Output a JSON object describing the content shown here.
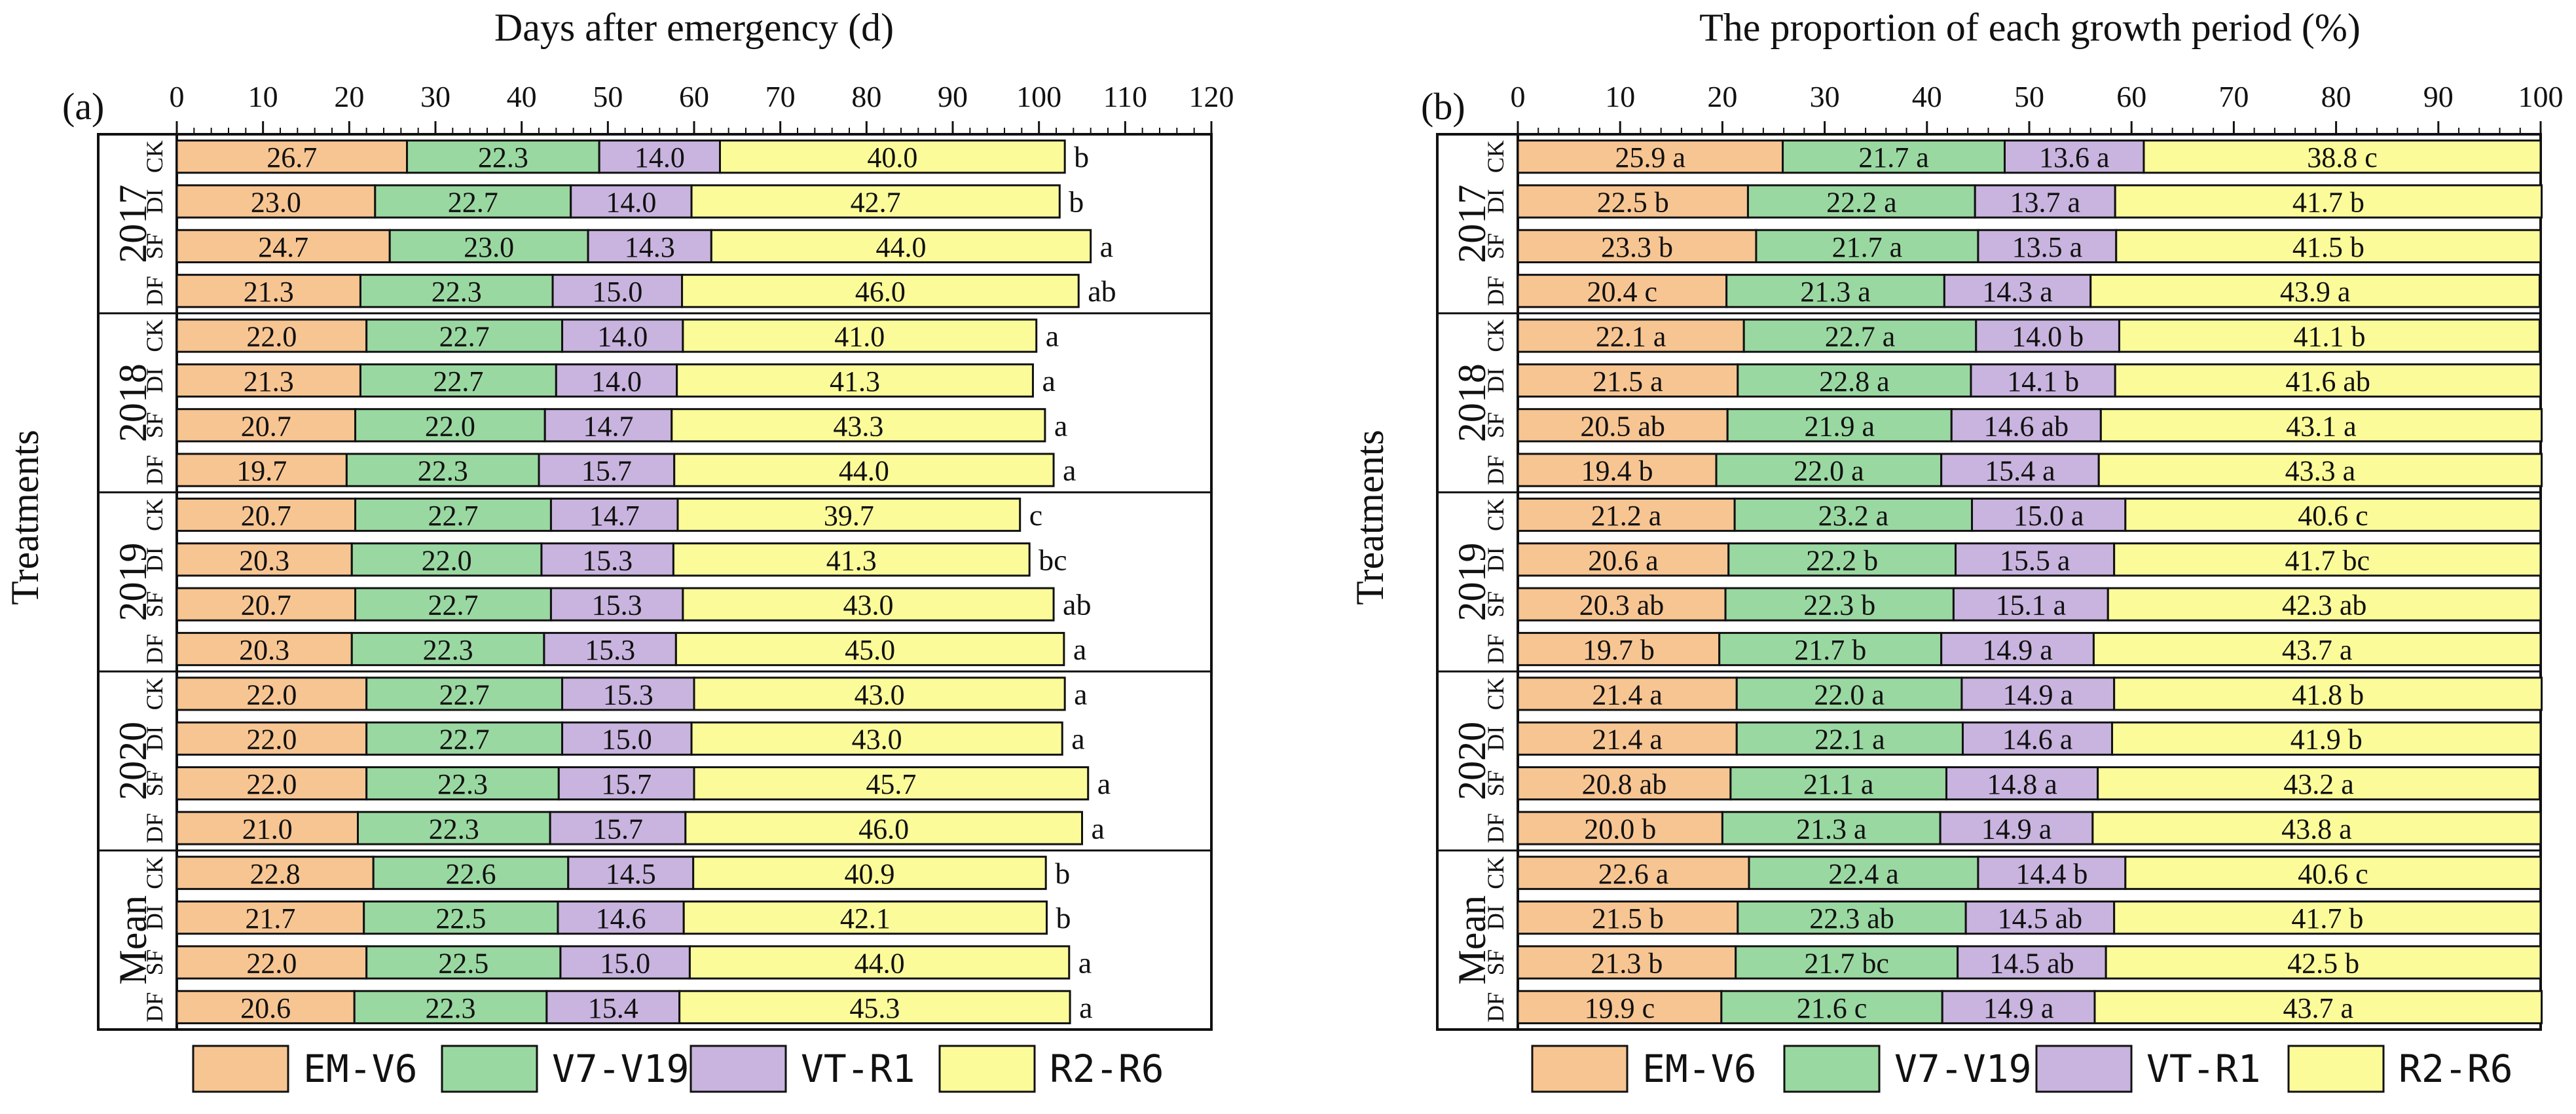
{
  "colors": {
    "EM-V6": "#f7c592",
    "V7-V19": "#9ad8a1",
    "VT-R1": "#c8b4de",
    "R2-R6": "#fbfb9a",
    "stroke": "#111111"
  },
  "y_axis_label": "Treatments",
  "group_labels": [
    "2017",
    "2018",
    "2019",
    "2020",
    "Mean"
  ],
  "treatments": [
    "CK",
    "DI",
    "SF",
    "DF"
  ],
  "legend": [
    "EM-V6",
    "V7-V19",
    "VT-R1",
    "R2-R6"
  ],
  "chart_data": [
    {
      "type": "bar",
      "stacked": true,
      "orientation": "horizontal",
      "panel_label": "(a)",
      "title": "Days after emergency (d)",
      "xlim": [
        0,
        120
      ],
      "xticks": [
        0,
        10,
        20,
        30,
        40,
        50,
        60,
        70,
        80,
        90,
        100,
        110,
        120
      ],
      "groups": [
        {
          "name": "2017",
          "rows": [
            {
              "treatment": "CK",
              "values": [
                26.7,
                22.3,
                14.0,
                40.0
              ],
              "sig": "b"
            },
            {
              "treatment": "DI",
              "values": [
                23.0,
                22.7,
                14.0,
                42.7
              ],
              "sig": "b"
            },
            {
              "treatment": "SF",
              "values": [
                24.7,
                23.0,
                14.3,
                44.0
              ],
              "sig": "a"
            },
            {
              "treatment": "DF",
              "values": [
                21.3,
                22.3,
                15.0,
                46.0
              ],
              "sig": "ab"
            }
          ]
        },
        {
          "name": "2018",
          "rows": [
            {
              "treatment": "CK",
              "values": [
                22.0,
                22.7,
                14.0,
                41.0
              ],
              "sig": "a"
            },
            {
              "treatment": "DI",
              "values": [
                21.3,
                22.7,
                14.0,
                41.3
              ],
              "sig": "a"
            },
            {
              "treatment": "SF",
              "values": [
                20.7,
                22.0,
                14.7,
                43.3
              ],
              "sig": "a"
            },
            {
              "treatment": "DF",
              "values": [
                19.7,
                22.3,
                15.7,
                44.0
              ],
              "sig": "a"
            }
          ]
        },
        {
          "name": "2019",
          "rows": [
            {
              "treatment": "CK",
              "values": [
                20.7,
                22.7,
                14.7,
                39.7
              ],
              "sig": "c"
            },
            {
              "treatment": "DI",
              "values": [
                20.3,
                22.0,
                15.3,
                41.3
              ],
              "sig": "bc"
            },
            {
              "treatment": "SF",
              "values": [
                20.7,
                22.7,
                15.3,
                43.0
              ],
              "sig": "ab"
            },
            {
              "treatment": "DF",
              "values": [
                20.3,
                22.3,
                15.3,
                45.0
              ],
              "sig": "a"
            }
          ]
        },
        {
          "name": "2020",
          "rows": [
            {
              "treatment": "CK",
              "values": [
                22.0,
                22.7,
                15.3,
                43.0
              ],
              "sig": "a"
            },
            {
              "treatment": "DI",
              "values": [
                22.0,
                22.7,
                15.0,
                43.0
              ],
              "sig": "a"
            },
            {
              "treatment": "SF",
              "values": [
                22.0,
                22.3,
                15.7,
                45.7
              ],
              "sig": "a"
            },
            {
              "treatment": "DF",
              "values": [
                21.0,
                22.3,
                15.7,
                46.0
              ],
              "sig": "a"
            }
          ]
        },
        {
          "name": "Mean",
          "rows": [
            {
              "treatment": "CK",
              "values": [
                22.8,
                22.6,
                14.5,
                40.9
              ],
              "sig": "b"
            },
            {
              "treatment": "DI",
              "values": [
                21.7,
                22.5,
                14.6,
                42.1
              ],
              "sig": "b"
            },
            {
              "treatment": "SF",
              "values": [
                22.0,
                22.5,
                15.0,
                44.0
              ],
              "sig": "a"
            },
            {
              "treatment": "DF",
              "values": [
                20.6,
                22.3,
                15.4,
                45.3
              ],
              "sig": "a"
            }
          ]
        }
      ]
    },
    {
      "type": "bar",
      "stacked": true,
      "orientation": "horizontal",
      "panel_label": "(b)",
      "title": "The proportion of each growth period (%)",
      "xlim": [
        0,
        100
      ],
      "xticks": [
        0,
        10,
        20,
        30,
        40,
        50,
        60,
        70,
        80,
        90,
        100
      ],
      "groups": [
        {
          "name": "2017",
          "rows": [
            {
              "treatment": "CK",
              "values": [
                25.9,
                21.7,
                13.6,
                38.8
              ],
              "sigs": [
                "a",
                "a",
                "a",
                "c"
              ]
            },
            {
              "treatment": "DI",
              "values": [
                22.5,
                22.2,
                13.7,
                41.7
              ],
              "sigs": [
                "b",
                "a",
                "a",
                "b"
              ]
            },
            {
              "treatment": "SF",
              "values": [
                23.3,
                21.7,
                13.5,
                41.5
              ],
              "sigs": [
                "b",
                "a",
                "a",
                "b"
              ]
            },
            {
              "treatment": "DF",
              "values": [
                20.4,
                21.3,
                14.3,
                43.9
              ],
              "sigs": [
                "c",
                "a",
                "a",
                "a"
              ]
            }
          ]
        },
        {
          "name": "2018",
          "rows": [
            {
              "treatment": "CK",
              "values": [
                22.1,
                22.7,
                14.0,
                41.1
              ],
              "sigs": [
                "a",
                "a",
                "b",
                "b"
              ]
            },
            {
              "treatment": "DI",
              "values": [
                21.5,
                22.8,
                14.1,
                41.6
              ],
              "sigs": [
                "a",
                "a",
                "b",
                "ab"
              ]
            },
            {
              "treatment": "SF",
              "values": [
                20.5,
                21.9,
                14.6,
                43.1
              ],
              "sigs": [
                "ab",
                "a",
                "ab",
                "a"
              ]
            },
            {
              "treatment": "DF",
              "values": [
                19.4,
                22.0,
                15.4,
                43.3
              ],
              "sigs": [
                "b",
                "a",
                "a",
                "a"
              ]
            }
          ]
        },
        {
          "name": "2019",
          "rows": [
            {
              "treatment": "CK",
              "values": [
                21.2,
                23.2,
                15.0,
                40.6
              ],
              "sigs": [
                "a",
                "a",
                "a",
                "c"
              ]
            },
            {
              "treatment": "DI",
              "values": [
                20.6,
                22.2,
                15.5,
                41.7
              ],
              "sigs": [
                "a",
                "b",
                "a",
                "bc"
              ]
            },
            {
              "treatment": "SF",
              "values": [
                20.3,
                22.3,
                15.1,
                42.3
              ],
              "sigs": [
                "ab",
                "b",
                "a",
                "ab"
              ]
            },
            {
              "treatment": "DF",
              "values": [
                19.7,
                21.7,
                14.9,
                43.7
              ],
              "sigs": [
                "b",
                "b",
                "a",
                "a"
              ]
            }
          ]
        },
        {
          "name": "2020",
          "rows": [
            {
              "treatment": "CK",
              "values": [
                21.4,
                22.0,
                14.9,
                41.8
              ],
              "sigs": [
                "a",
                "a",
                "a",
                "b"
              ]
            },
            {
              "treatment": "DI",
              "values": [
                21.4,
                22.1,
                14.6,
                41.9
              ],
              "sigs": [
                "a",
                "a",
                "a",
                "b"
              ]
            },
            {
              "treatment": "SF",
              "values": [
                20.8,
                21.1,
                14.8,
                43.2
              ],
              "sigs": [
                "ab",
                "a",
                "a",
                "a"
              ]
            },
            {
              "treatment": "DF",
              "values": [
                20.0,
                21.3,
                14.9,
                43.8
              ],
              "sigs": [
                "b",
                "a",
                "a",
                "a"
              ]
            }
          ]
        },
        {
          "name": "Mean",
          "rows": [
            {
              "treatment": "CK",
              "values": [
                22.6,
                22.4,
                14.4,
                40.6
              ],
              "sigs": [
                "a",
                "a",
                "b",
                "c"
              ]
            },
            {
              "treatment": "DI",
              "values": [
                21.5,
                22.3,
                14.5,
                41.7
              ],
              "sigs": [
                "b",
                "ab",
                "ab",
                "b"
              ]
            },
            {
              "treatment": "SF",
              "values": [
                21.3,
                21.7,
                14.5,
                42.5
              ],
              "sigs": [
                "b",
                "bc",
                "ab",
                "b"
              ]
            },
            {
              "treatment": "DF",
              "values": [
                19.9,
                21.6,
                14.9,
                43.7
              ],
              "sigs": [
                "c",
                "c",
                "a",
                "a"
              ]
            }
          ]
        }
      ]
    }
  ]
}
